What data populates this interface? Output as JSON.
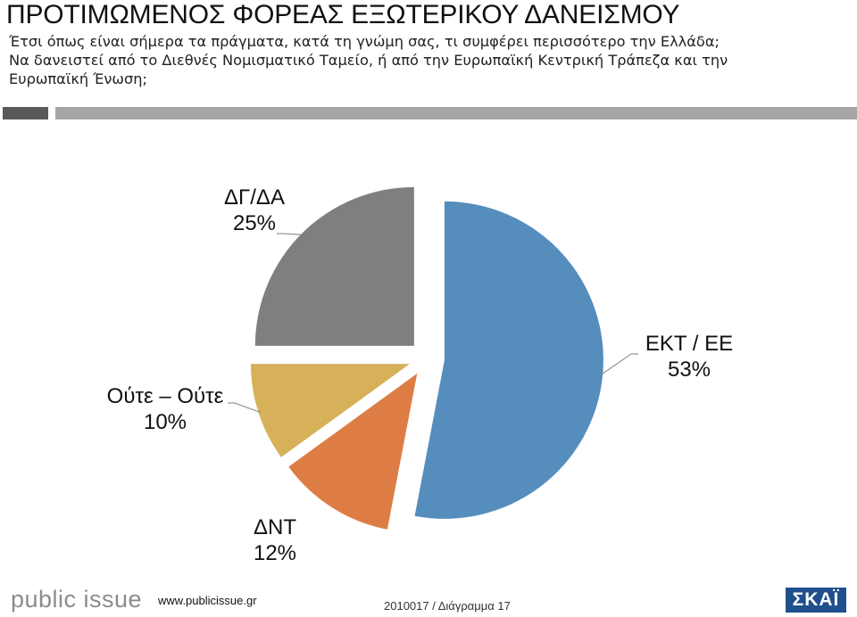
{
  "header": {
    "title": "ΠΡΟΤΙΜΩΜΕΝΟΣ ΦΟΡΕΑΣ ΕΞΩΤΕΡΙΚΟΥ ΔΑΝΕΙΣΜΟΥ",
    "question_lines": [
      "Έτσι όπως είναι σήμερα τα πράγματα, κατά τη γνώμη σας, τι συμφέρει περισσότερο την Ελλάδα;",
      "Να δανειστεί από το Διεθνές Νομισματικό Ταμείο, ή από την Ευρωπαϊκή Κεντρική Τράπεζα και την",
      "Ευρωπαϊκή Ένωση;"
    ]
  },
  "chart_data": {
    "type": "pie",
    "title": "",
    "slices": [
      {
        "label": "ΕΚΤ / ΕΕ",
        "value": 53,
        "value_label": "53%",
        "color": "#558dbd"
      },
      {
        "label": "ΔΝΤ",
        "value": 12,
        "value_label": "12%",
        "color": "#dd7d45"
      },
      {
        "label": "Ούτε – Ούτε",
        "value": 10,
        "value_label": "10%",
        "color": "#d6b15a"
      },
      {
        "label": "ΔΓ/ΔΑ",
        "value": 25,
        "value_label": "25%",
        "color": "#7f7f7f"
      }
    ],
    "start_angle_deg": 0,
    "direction": "clockwise",
    "exploded": true,
    "legend": "none"
  },
  "footer": {
    "logo_text": "public issue",
    "url": "www.publicissue.gr",
    "code": "2010017 / Διάγραμμα 17",
    "brand": "ΣΚΑΪ"
  }
}
